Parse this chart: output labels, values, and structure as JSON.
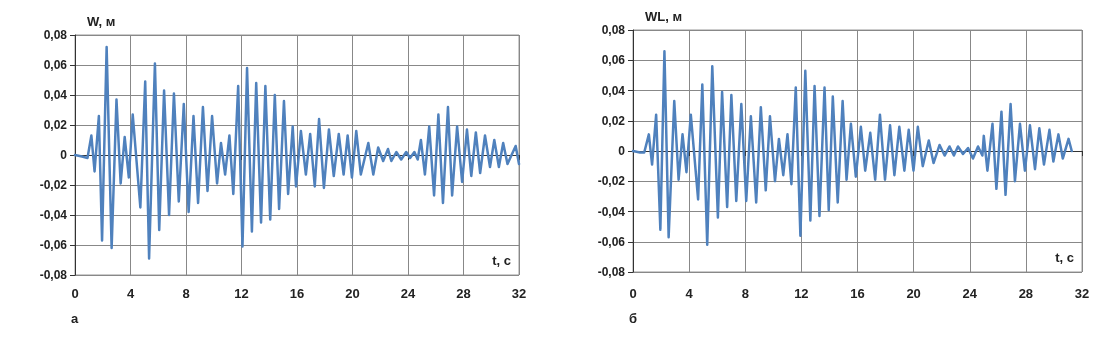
{
  "chart_data": [
    {
      "type": "line",
      "ylabel": "W, м",
      "xlabel": "t, с",
      "annotations": [
        "а"
      ],
      "grid": true,
      "marker": "none",
      "line_style": "solid",
      "xlim": [
        0,
        32
      ],
      "xticks": [
        0,
        4,
        8,
        12,
        16,
        20,
        24,
        28,
        32
      ],
      "ylim": [
        -0.08,
        0.08
      ],
      "yticks": [
        {
          "value": -0.08,
          "label": "-0,08"
        },
        {
          "value": -0.06,
          "label": "-0,06"
        },
        {
          "value": -0.04,
          "label": "-0,04"
        },
        {
          "value": -0.02,
          "label": "-0,02"
        },
        0,
        {
          "value": 0.02,
          "label": "0,02"
        },
        {
          "value": 0.04,
          "label": "0,04"
        },
        {
          "value": 0.06,
          "label": "0,06"
        },
        {
          "value": 0.08,
          "label": "0,08"
        }
      ],
      "series": [
        {
          "color": "#4f81bd",
          "x": [
            0,
            0.5,
            0.9,
            1.18,
            1.41,
            1.72,
            1.95,
            2.28,
            2.64,
            2.99,
            3.29,
            3.58,
            3.88,
            4.16,
            4.71,
            5.06,
            5.34,
            5.76,
            6.07,
            6.42,
            6.78,
            7.13,
            7.48,
            7.84,
            8.19,
            8.54,
            8.87,
            9.22,
            9.55,
            9.88,
            10.24,
            10.52,
            10.82,
            11.13,
            11.41,
            11.76,
            12.07,
            12.4,
            12.75,
            13.06,
            13.41,
            13.72,
            14.07,
            14.4,
            14.71,
            15.06,
            15.36,
            15.69,
            15.93,
            16.28,
            16.64,
            16.95,
            17.28,
            17.59,
            17.94,
            18.3,
            18.65,
            19.01,
            19.36,
            19.65,
            19.96,
            20.27,
            20.6,
            21.14,
            21.5,
            21.85,
            22.21,
            22.56,
            22.8,
            23.16,
            23.51,
            23.87,
            24.15,
            24.46,
            24.7,
            24.93,
            25.22,
            25.53,
            25.88,
            26.19,
            26.52,
            26.88,
            27.18,
            27.54,
            27.9,
            28.25,
            28.56,
            28.89,
            29.2,
            29.55,
            29.91,
            30.22,
            30.55,
            30.86,
            31.17,
            31.76,
            32
          ],
          "values": [
            0,
            -0.001,
            -0.002,
            0.013,
            -0.011,
            0.026,
            -0.057,
            0.072,
            -0.062,
            0.037,
            -0.019,
            0.012,
            -0.015,
            0.027,
            -0.035,
            0.049,
            -0.069,
            0.061,
            -0.05,
            0.043,
            -0.04,
            0.041,
            -0.031,
            0.034,
            -0.038,
            0.026,
            -0.032,
            0.032,
            -0.024,
            0.026,
            -0.019,
            0.008,
            -0.013,
            0.013,
            -0.026,
            0.046,
            -0.061,
            0.058,
            -0.051,
            0.048,
            -0.045,
            0.046,
            -0.043,
            0.04,
            -0.036,
            0.036,
            -0.026,
            0.019,
            -0.021,
            0.016,
            -0.013,
            0.014,
            -0.021,
            0.024,
            -0.022,
            0.017,
            -0.014,
            0.014,
            -0.013,
            0.013,
            -0.015,
            0.016,
            -0.013,
            0.008,
            -0.013,
            0.005,
            -0.004,
            0.004,
            -0.004,
            0.002,
            -0.003,
            0.002,
            -0.002,
            0.002,
            -0.003,
            0.01,
            -0.013,
            0.019,
            -0.027,
            0.027,
            -0.032,
            0.032,
            -0.027,
            0.019,
            -0.018,
            0.017,
            -0.014,
            0.015,
            -0.012,
            0.013,
            -0.008,
            0.01,
            -0.008,
            0.008,
            -0.006,
            0.006,
            -0.006
          ]
        }
      ]
    },
    {
      "type": "line",
      "ylabel": "WL, м",
      "xlabel": "t, с",
      "annotations": [
        "б"
      ],
      "grid": true,
      "marker": "none",
      "line_style": "solid",
      "xlim": [
        0,
        32
      ],
      "xticks": [
        0,
        4,
        8,
        12,
        16,
        20,
        24,
        28,
        32
      ],
      "ylim": [
        -0.08,
        0.08
      ],
      "yticks": [
        {
          "value": -0.08,
          "label": "-0,08"
        },
        {
          "value": -0.06,
          "label": "-0,06"
        },
        {
          "value": -0.04,
          "label": "-0,04"
        },
        {
          "value": -0.02,
          "label": "-0,02"
        },
        0,
        {
          "value": 0.02,
          "label": "0,02"
        },
        {
          "value": 0.04,
          "label": "0,04"
        },
        {
          "value": 0.06,
          "label": "0,06"
        },
        {
          "value": 0.08,
          "label": "0,08"
        }
      ],
      "series": [
        {
          "color": "#4f81bd",
          "x": [
            0,
            0.5,
            0.8,
            1.13,
            1.36,
            1.65,
            1.95,
            2.24,
            2.54,
            2.94,
            3.25,
            3.53,
            3.81,
            4.12,
            4.64,
            4.94,
            5.29,
            5.65,
            6.05,
            6.35,
            6.71,
            7.01,
            7.36,
            7.72,
            8.07,
            8.4,
            8.78,
            9.11,
            9.46,
            9.76,
            10.12,
            10.4,
            10.71,
            11.01,
            11.29,
            11.6,
            11.93,
            12.28,
            12.64,
            12.94,
            13.29,
            13.65,
            13.95,
            14.24,
            14.59,
            14.94,
            15.22,
            15.53,
            15.88,
            16.24,
            16.55,
            16.91,
            17.26,
            17.6,
            17.96,
            18.32,
            18.63,
            18.98,
            19.34,
            19.65,
            19.99,
            20.3,
            20.65,
            21.08,
            21.42,
            21.85,
            22.21,
            22.56,
            22.87,
            23.16,
            23.52,
            23.88,
            24.23,
            24.59,
            24.9,
            25,
            25.26,
            25.62,
            25.9,
            26.26,
            26.55,
            26.91,
            27.22,
            27.58,
            27.93,
            28.29,
            28.65,
            28.96,
            29.29,
            29.68,
            29.96,
            30.32,
            30.63,
            31.04,
            31.27
          ],
          "values": [
            0,
            -0.001,
            -0.001,
            0.011,
            -0.009,
            0.024,
            -0.052,
            0.066,
            -0.057,
            0.033,
            -0.019,
            0.011,
            -0.014,
            0.024,
            -0.032,
            0.044,
            -0.062,
            0.056,
            -0.044,
            0.039,
            -0.037,
            0.037,
            -0.033,
            0.031,
            -0.033,
            0.023,
            -0.034,
            0.029,
            -0.026,
            0.023,
            -0.02,
            0.008,
            -0.016,
            0.011,
            -0.022,
            0.042,
            -0.056,
            0.053,
            -0.046,
            0.043,
            -0.043,
            0.042,
            -0.039,
            0.036,
            -0.034,
            0.033,
            -0.019,
            0.018,
            -0.017,
            0.016,
            -0.013,
            0.012,
            -0.019,
            0.024,
            -0.019,
            0.017,
            -0.016,
            0.016,
            -0.013,
            0.014,
            -0.013,
            0.016,
            -0.01,
            0.007,
            -0.008,
            0.004,
            -0.003,
            0.003,
            -0.003,
            0.003,
            -0.002,
            0.002,
            -0.005,
            0.003,
            -0.003,
            0.01,
            -0.013,
            0.018,
            -0.025,
            0.026,
            -0.029,
            0.031,
            -0.02,
            0.018,
            -0.013,
            0.017,
            -0.012,
            0.015,
            -0.009,
            0.014,
            -0.007,
            0.011,
            -0.005,
            0.008,
            0
          ]
        }
      ]
    }
  ]
}
